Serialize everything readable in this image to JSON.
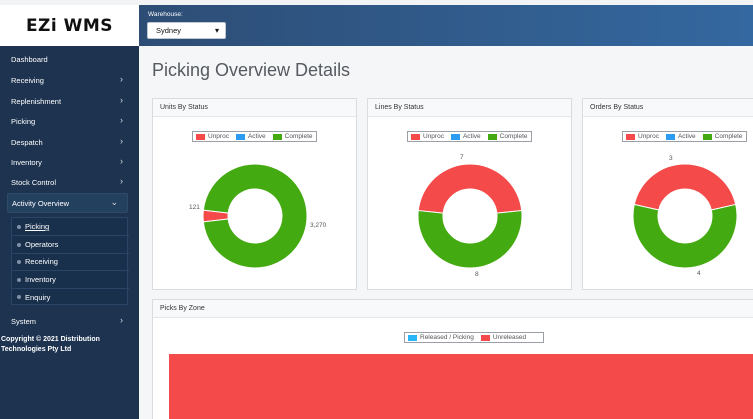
{
  "app": {
    "logo": "EZi WMS"
  },
  "header": {
    "warehouse_label": "Warehouse:",
    "warehouse_value": "Sydney"
  },
  "sidebar": {
    "items": [
      {
        "label": "Dashboard"
      },
      {
        "label": "Receiving"
      },
      {
        "label": "Replenishment"
      },
      {
        "label": "Picking"
      },
      {
        "label": "Despatch"
      },
      {
        "label": "Inventory"
      },
      {
        "label": "Stock Control"
      },
      {
        "label": "Activity Overview"
      },
      {
        "label": "System"
      }
    ],
    "sub_items": [
      {
        "label": "Picking"
      },
      {
        "label": "Operators"
      },
      {
        "label": "Receiving"
      },
      {
        "label": "Inventory"
      },
      {
        "label": "Enquiry"
      }
    ],
    "copyright": "Copyright © 2021 Distribution Technologies Pty Ltd"
  },
  "page": {
    "title": "Picking Overview Details"
  },
  "colors": {
    "unproc": "#f44a4a",
    "active": "#2b9bf4",
    "complete": "#44aa11",
    "released": "#29b6f6"
  },
  "cards": [
    {
      "title": "Units By Status"
    },
    {
      "title": "Lines By Status"
    },
    {
      "title": "Orders By Status"
    },
    {
      "title": "Picks By Zone"
    }
  ],
  "legend": {
    "unproc": "Unproc",
    "active": "Active",
    "complete": "Complete",
    "released": "Released / Picking",
    "unreleased": "Unreleased"
  },
  "chart_data": [
    {
      "type": "pie",
      "title": "Units By Status",
      "categories": [
        "Unproc",
        "Active",
        "Complete"
      ],
      "values": [
        121,
        0,
        3270
      ],
      "value_labels": [
        "121",
        "",
        "3,270"
      ]
    },
    {
      "type": "pie",
      "title": "Lines By Status",
      "categories": [
        "Unproc",
        "Active",
        "Complete"
      ],
      "values": [
        7,
        0,
        8
      ],
      "value_labels": [
        "7",
        "",
        "8"
      ]
    },
    {
      "type": "pie",
      "title": "Orders By Status",
      "categories": [
        "Unproc",
        "Active",
        "Complete"
      ],
      "values": [
        3,
        0,
        4
      ],
      "value_labels": [
        "3",
        "",
        "4"
      ]
    },
    {
      "type": "bar",
      "title": "Picks By Zone",
      "series": [
        {
          "name": "Released / Picking"
        },
        {
          "name": "Unreleased"
        }
      ]
    }
  ]
}
